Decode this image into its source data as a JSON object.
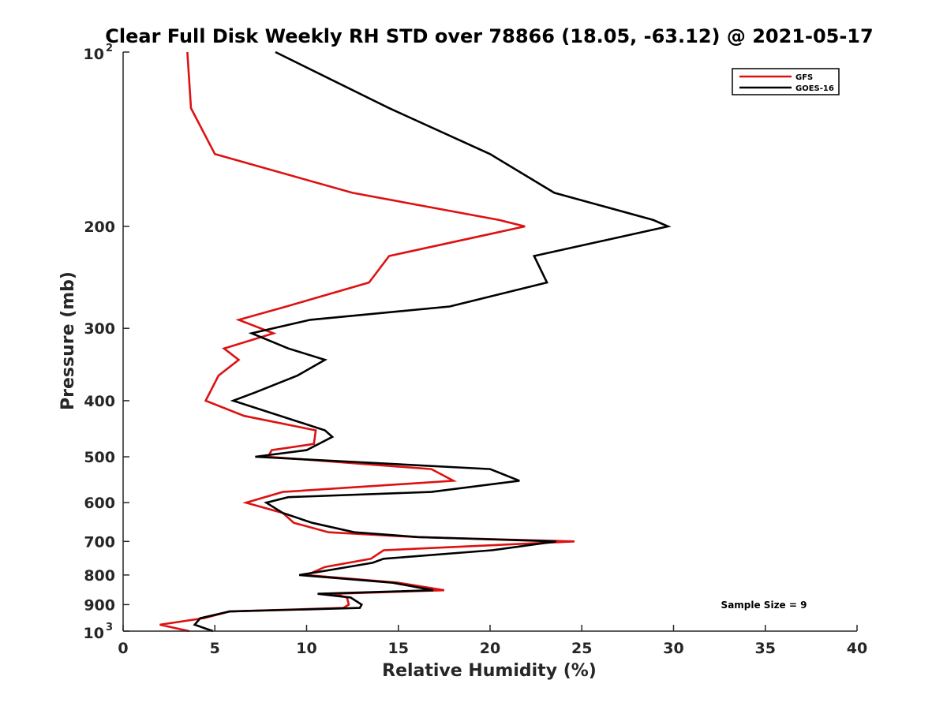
{
  "chart_data": {
    "type": "line",
    "title": "Clear Full Disk Weekly RH STD over 78866 (18.05, -63.12) @ 2021-05-17",
    "xlabel": "Relative Humidity (%)",
    "ylabel": "Pressure (mb)",
    "xlim": [
      0,
      40
    ],
    "ylim": [
      100,
      1000
    ],
    "y_scale": "log",
    "y_reversed": true,
    "grid": false,
    "legend_position": "top-right",
    "x_ticks": [
      "0",
      "5",
      "10",
      "15",
      "20",
      "25",
      "30",
      "35",
      "40"
    ],
    "y_ticks": [
      {
        "value": 100,
        "base": "10",
        "exp": "2"
      },
      {
        "value": 200,
        "label": "200"
      },
      {
        "value": 300,
        "label": "300"
      },
      {
        "value": 400,
        "label": "400"
      },
      {
        "value": 500,
        "label": "500"
      },
      {
        "value": 600,
        "label": "600"
      },
      {
        "value": 700,
        "label": "700"
      },
      {
        "value": 800,
        "label": "800"
      },
      {
        "value": 900,
        "label": "900"
      },
      {
        "value": 1000,
        "base": "10",
        "exp": "3"
      }
    ],
    "annotation": "Sample Size = 9",
    "series": [
      {
        "name": "GFS",
        "color": "#dd1111",
        "points": [
          [
            3.5,
            100
          ],
          [
            3.7,
            125
          ],
          [
            5.0,
            150
          ],
          [
            12.5,
            175
          ],
          [
            20.5,
            195
          ],
          [
            21.9,
            200
          ],
          [
            14.5,
            225
          ],
          [
            13.4,
            250
          ],
          [
            8.9,
            275
          ],
          [
            6.3,
            290
          ],
          [
            8.2,
            306
          ],
          [
            5.5,
            325
          ],
          [
            6.3,
            340
          ],
          [
            5.2,
            362
          ],
          [
            4.5,
            400
          ],
          [
            6.6,
            425
          ],
          [
            10.5,
            450
          ],
          [
            10.4,
            475
          ],
          [
            8.1,
            487
          ],
          [
            7.9,
            500
          ],
          [
            16.8,
            525
          ],
          [
            18.0,
            550
          ],
          [
            8.7,
            575
          ],
          [
            6.7,
            600
          ],
          [
            8.7,
            625
          ],
          [
            9.3,
            650
          ],
          [
            11.2,
            675
          ],
          [
            16.0,
            688
          ],
          [
            24.6,
            700
          ],
          [
            14.2,
            725
          ],
          [
            13.5,
            750
          ],
          [
            11.0,
            775
          ],
          [
            10.0,
            800
          ],
          [
            15.0,
            825
          ],
          [
            17.5,
            850
          ],
          [
            11.5,
            862
          ],
          [
            12.2,
            875
          ],
          [
            12.3,
            900
          ],
          [
            12.0,
            912
          ],
          [
            5.8,
            925
          ],
          [
            4.4,
            950
          ],
          [
            2.0,
            975
          ],
          [
            3.6,
            1000
          ]
        ]
      },
      {
        "name": "GOES-16",
        "color": "#000000",
        "points": [
          [
            8.3,
            100
          ],
          [
            14.5,
            125
          ],
          [
            20.0,
            150
          ],
          [
            23.5,
            175
          ],
          [
            28.9,
            195
          ],
          [
            29.7,
            200
          ],
          [
            22.4,
            225
          ],
          [
            23.1,
            250
          ],
          [
            17.8,
            275
          ],
          [
            10.2,
            290
          ],
          [
            7.0,
            306
          ],
          [
            9.0,
            325
          ],
          [
            11.0,
            340
          ],
          [
            9.5,
            362
          ],
          [
            7.2,
            387
          ],
          [
            6.0,
            400
          ],
          [
            11.0,
            450
          ],
          [
            11.4,
            462
          ],
          [
            10.0,
            487
          ],
          [
            7.2,
            500
          ],
          [
            20.0,
            525
          ],
          [
            21.6,
            550
          ],
          [
            16.8,
            575
          ],
          [
            9.0,
            587
          ],
          [
            7.8,
            600
          ],
          [
            8.7,
            625
          ],
          [
            10.3,
            650
          ],
          [
            12.6,
            675
          ],
          [
            16.1,
            688
          ],
          [
            23.6,
            700
          ],
          [
            20.1,
            725
          ],
          [
            14.2,
            750
          ],
          [
            13.6,
            762
          ],
          [
            11.0,
            787
          ],
          [
            9.6,
            800
          ],
          [
            14.7,
            825
          ],
          [
            16.9,
            850
          ],
          [
            10.6,
            862
          ],
          [
            12.4,
            875
          ],
          [
            13.0,
            900
          ],
          [
            12.9,
            912
          ],
          [
            5.8,
            925
          ],
          [
            4.2,
            950
          ],
          [
            3.9,
            975
          ],
          [
            4.9,
            1000
          ]
        ]
      }
    ]
  }
}
